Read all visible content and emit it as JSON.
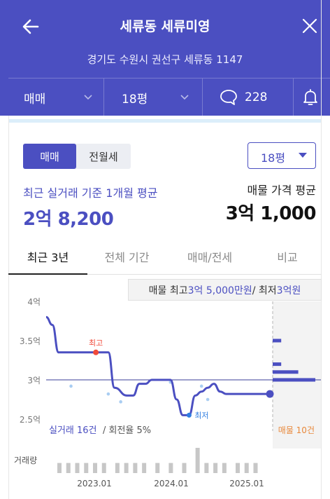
{
  "header": {
    "title": "세류동 세류미영",
    "address": "경기도 수원시 권선구 세류동 1147",
    "filters": {
      "deal_type": "매매",
      "size": "18평",
      "comment_count": "228"
    }
  },
  "segment": {
    "sale": "매매",
    "lease": "전월세"
  },
  "size_select": "18평",
  "summary": {
    "recent_label": "최근 실거래 기준 1개월 평균",
    "recent_price": "2억 8,200",
    "ask_label": "매물 가격 평균",
    "ask_price": "3억 1,000"
  },
  "tabs": [
    "최근 3년",
    "전체 기간",
    "매매/전세",
    "비교"
  ],
  "tooltip": {
    "prefix": "매물 최고 ",
    "max_value": "3억 5,000만원",
    "middle": " / 최저 ",
    "min_value": "3억원"
  },
  "chart_data": {
    "type": "line",
    "y_ticks": [
      "4억",
      "3.5억",
      "3억",
      "2.5억"
    ],
    "x_ticks": [
      "2023.01",
      "2024.01",
      "2025.01"
    ],
    "ylim": [
      2.5,
      4.0
    ],
    "reference_line": 3.0,
    "highlight_high_label": "최고",
    "highlight_low_label": "최저",
    "series": [
      {
        "x": [
          "2022.05",
          "2022.06",
          "2022.07",
          "2022.09",
          "2022.11",
          "2023.01",
          "2023.03",
          "2023.04",
          "2023.06",
          "2023.07",
          "2023.08",
          "2023.09",
          "2023.10",
          "2023.11",
          "2023.12",
          "2024.01",
          "2024.02",
          "2024.03",
          "2024.04",
          "2024.05",
          "2024.06",
          "2024.07",
          "2024.08",
          "2024.09",
          "2024.10",
          "2024.12",
          "2025.02",
          "2025.05"
        ],
        "values": [
          3.8,
          3.7,
          3.35,
          3.35,
          3.35,
          3.35,
          3.35,
          2.9,
          2.8,
          2.8,
          2.95,
          2.95,
          3.0,
          3.0,
          3.0,
          3.0,
          2.75,
          2.55,
          2.55,
          2.8,
          2.85,
          2.9,
          2.95,
          2.85,
          2.82,
          2.82,
          2.82,
          2.82
        ]
      }
    ],
    "scatter_points": [
      {
        "x": "2022.09",
        "y": 2.92
      },
      {
        "x": "2023.03",
        "y": 2.82
      },
      {
        "x": "2023.05",
        "y": 2.72
      },
      {
        "x": "2024.01",
        "y": 2.97
      },
      {
        "x": "2024.06",
        "y": 2.92
      },
      {
        "x": "2024.07",
        "y": 2.75
      }
    ],
    "listing_bars": [
      {
        "y": 3.5,
        "length": 0.2
      },
      {
        "y": 3.2,
        "length": 0.2
      },
      {
        "y": 3.1,
        "length": 0.6
      },
      {
        "y": 3.0,
        "length": 1.0
      }
    ],
    "volume_bars": [
      0.4,
      0,
      0.4,
      0,
      0.4,
      0,
      0.4,
      0,
      0.4,
      0,
      0.4,
      0,
      0,
      0.4,
      0,
      0.4,
      0,
      0.4,
      0,
      0.4,
      0,
      0,
      0.4,
      0,
      0,
      0.4,
      0,
      0,
      0.4,
      0,
      0,
      1.0,
      0,
      0.4,
      0,
      0.4,
      0,
      0.4,
      0,
      0,
      0.4,
      0,
      0.4,
      0,
      0.4,
      0,
      0,
      0
    ],
    "footer_left_prefix": "실거래 16건",
    "footer_left_suffix": " / 회전율 5%",
    "footer_right": "매물 10건",
    "volume_label": "거래량",
    "colors": {
      "accent": "#4b4fc1",
      "high": "#f04a3a",
      "low": "#2f7de1",
      "listing": "#e8883a",
      "scatter": "#a9cdf2"
    }
  }
}
